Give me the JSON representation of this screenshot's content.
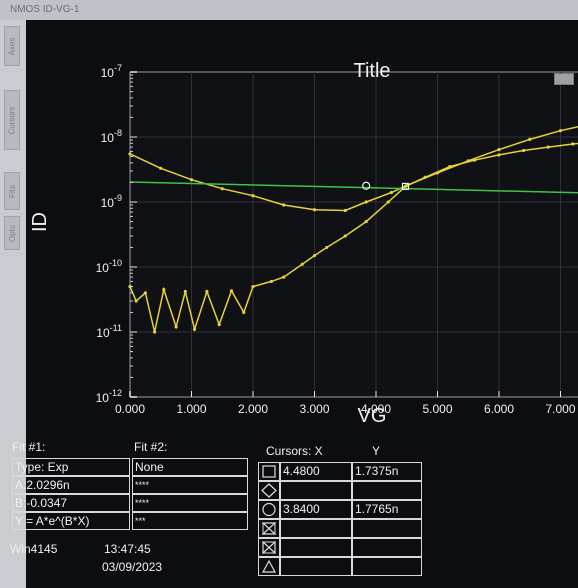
{
  "window": {
    "title": "NMOS ID-VG-1"
  },
  "side_tabs": [
    "Axes",
    "Cursors",
    "Fits",
    "Opts"
  ],
  "chart_data": {
    "type": "line",
    "title": "Title",
    "xlabel": "VG",
    "ylabel": "ID",
    "xlim": [
      0,
      7.8
    ],
    "ylim": [
      1e-12,
      1e-07
    ],
    "yscale": "log",
    "x_ticks": [
      "0.000",
      "1.000",
      "2.000",
      "3.000",
      "4.000",
      "5.000",
      "6.000",
      "7.000"
    ],
    "y_ticks": [
      {
        "base": "10",
        "exp": "-7"
      },
      {
        "base": "10",
        "exp": "-8"
      },
      {
        "base": "10",
        "exp": "-9"
      },
      {
        "base": "10",
        "exp": "-10"
      },
      {
        "base": "10",
        "exp": "-11"
      },
      {
        "base": "10",
        "exp": "-12"
      }
    ],
    "series": [
      {
        "color": "#e6d23a",
        "x": [
          0,
          0.5,
          1,
          1.5,
          2,
          2.5,
          3,
          3.5,
          3.84,
          4.25,
          4.5,
          5,
          5.5,
          6,
          6.5,
          7,
          7.5,
          7.8
        ],
        "y": [
          5.5e-09,
          3.3e-09,
          2.2e-09,
          1.6e-09,
          1.25e-09,
          9e-10,
          7.6e-10,
          7.4e-10,
          1e-09,
          1.4e-09,
          1.8e-09,
          2.8e-09,
          4.3e-09,
          6.4e-09,
          9.2e-09,
          1.25e-08,
          1.6e-08,
          1.8e-08
        ]
      },
      {
        "color": "#e6d23a",
        "x": [
          0,
          0.1,
          0.25,
          0.4,
          0.55,
          0.75,
          0.9,
          1.05,
          1.25,
          1.45,
          1.65,
          1.85,
          2,
          2.3,
          2.5,
          2.8,
          3,
          3.2,
          3.5,
          3.84,
          4.2,
          4.48,
          4.8,
          5.2,
          5.6,
          6,
          6.4,
          6.8,
          7.2,
          7.6,
          7.8
        ],
        "y": [
          5e-11,
          3e-11,
          4e-11,
          1e-11,
          4.5e-11,
          1.2e-11,
          4.2e-11,
          1.1e-11,
          4.2e-11,
          1.3e-11,
          4.3e-11,
          2e-11,
          5e-11,
          6e-11,
          7e-11,
          1.1e-10,
          1.5e-10,
          2e-10,
          3e-10,
          5e-10,
          1e-09,
          1.74e-09,
          2.4e-09,
          3.5e-09,
          4.4e-09,
          5.3e-09,
          6.2e-09,
          7e-09,
          7.8e-09,
          8.4e-09,
          8.7e-09
        ]
      },
      {
        "color": "#3fc24b",
        "x": [
          0,
          7.8
        ],
        "y": [
          2.03e-09,
          1.35e-09
        ]
      }
    ],
    "cursors": [
      {
        "shape": "square",
        "x": 4.48,
        "y": 1.7375e-09
      },
      {
        "shape": "circle",
        "x": 3.84,
        "y": 1.7765e-09
      }
    ]
  },
  "fit1": {
    "header": "Fit #1:",
    "rows": [
      "Type: Exp",
      "A:2.0296n",
      "B:-0.0347",
      "Y = A*e^(B*X)"
    ]
  },
  "fit2": {
    "header": "Fit #2:",
    "rows": [
      "None",
      "****",
      "****",
      "***"
    ]
  },
  "cursors_table": {
    "header_x": "Cursors: X",
    "header_y": "Y",
    "rows": [
      {
        "symbol": "square",
        "x": "4.4800",
        "y": "1.7375n"
      },
      {
        "symbol": "diamond",
        "x": "",
        "y": ""
      },
      {
        "symbol": "circle",
        "x": "3.8400",
        "y": "1.7765n"
      },
      {
        "symbol": "hourglass",
        "x": "",
        "y": ""
      },
      {
        "symbol": "bowtie",
        "x": "",
        "y": ""
      },
      {
        "symbol": "triangle",
        "x": "",
        "y": ""
      }
    ]
  },
  "footer": {
    "station": "Win4145",
    "time": "13:47:45",
    "date": "03/09/2023"
  }
}
